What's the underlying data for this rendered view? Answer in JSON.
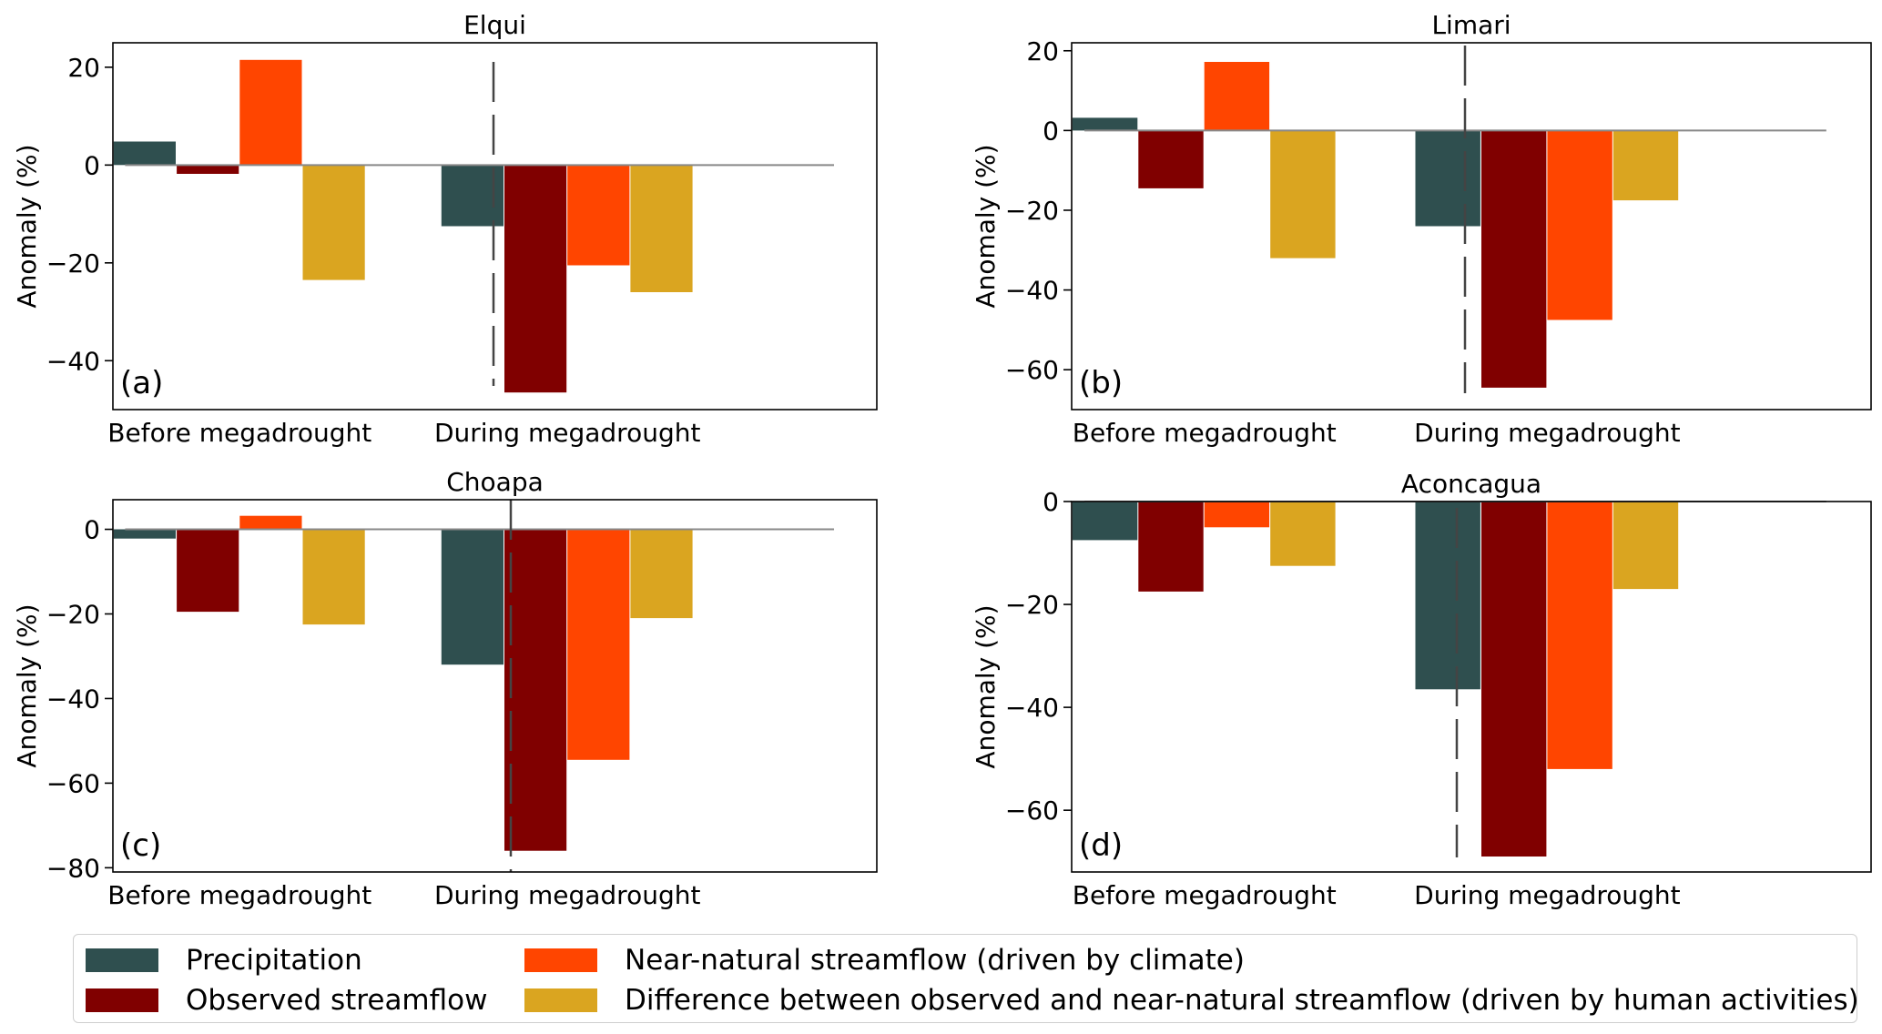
{
  "chart_data": [
    {
      "type": "bar",
      "title": "Elqui",
      "panel_label": "(a)",
      "ylabel": "Anomaly (%)",
      "categories": [
        "Before megadrought",
        "During megadrought"
      ],
      "ylim": [
        -50,
        25
      ],
      "yticks": [
        20,
        0,
        -20,
        -40
      ],
      "ytick_labels": [
        "20",
        "0",
        "−20",
        "−40"
      ],
      "series": [
        {
          "name": "Precipitation",
          "values": [
            4.8,
            -12.5
          ]
        },
        {
          "name": "Observed streamflow",
          "values": [
            -1.8,
            -46.5
          ]
        },
        {
          "name": "Near-natural streamflow (driven by climate)",
          "values": [
            21.5,
            -20.5
          ]
        },
        {
          "name": "Difference between observed and near-natural streamflow (driven by human activities)",
          "values": [
            -23.5,
            -26
          ]
        }
      ]
    },
    {
      "type": "bar",
      "title": "Limari",
      "panel_label": "(b)",
      "ylabel": "Anomaly (%)",
      "categories": [
        "Before megadrought",
        "During megadrought"
      ],
      "ylim": [
        -70,
        22
      ],
      "yticks": [
        20,
        0,
        -20,
        -40,
        -60
      ],
      "ytick_labels": [
        "20",
        "0",
        "−20",
        "−40",
        "−60"
      ],
      "series": [
        {
          "name": "Precipitation",
          "values": [
            3.2,
            -24
          ]
        },
        {
          "name": "Observed streamflow",
          "values": [
            -14.5,
            -64.5
          ]
        },
        {
          "name": "Near-natural streamflow (driven by climate)",
          "values": [
            17.2,
            -47.5
          ]
        },
        {
          "name": "Difference between observed and near-natural streamflow (driven by human activities)",
          "values": [
            -32,
            -17.5
          ]
        }
      ]
    },
    {
      "type": "bar",
      "title": "Choapa",
      "panel_label": "(c)",
      "ylabel": "Anomaly (%)",
      "categories": [
        "Before megadrought",
        "During megadrought"
      ],
      "ylim": [
        -81,
        7
      ],
      "yticks": [
        0,
        -20,
        -40,
        -60,
        -80
      ],
      "ytick_labels": [
        "0",
        "−20",
        "−40",
        "−60",
        "−80"
      ],
      "series": [
        {
          "name": "Precipitation",
          "values": [
            -2.2,
            -32
          ]
        },
        {
          "name": "Observed streamflow",
          "values": [
            -19.5,
            -76
          ]
        },
        {
          "name": "Near-natural streamflow (driven by climate)",
          "values": [
            3.2,
            -54.5
          ]
        },
        {
          "name": "Difference between observed and near-natural streamflow (driven by human activities)",
          "values": [
            -22.5,
            -21
          ]
        }
      ]
    },
    {
      "type": "bar",
      "title": "Aconcagua",
      "panel_label": "(d)",
      "ylabel": "Anomaly (%)",
      "categories": [
        "Before megadrought",
        "During megadrought"
      ],
      "ylim": [
        -72,
        0
      ],
      "yticks": [
        0,
        -20,
        -40,
        -60
      ],
      "ytick_labels": [
        "0",
        "−20",
        "−40",
        "−60"
      ],
      "series": [
        {
          "name": "Precipitation",
          "values": [
            -7.5,
            -36.5
          ]
        },
        {
          "name": "Observed streamflow",
          "values": [
            -17.5,
            -69
          ]
        },
        {
          "name": "Near-natural streamflow (driven by climate)",
          "values": [
            -5,
            -52
          ]
        },
        {
          "name": "Difference between observed and near-natural streamflow (driven by human activities)",
          "values": [
            -12.5,
            -17
          ]
        }
      ]
    }
  ],
  "legend": {
    "items": [
      {
        "label": "Precipitation",
        "color": "#2f4f4f"
      },
      {
        "label": "Observed streamflow",
        "color": "#800000"
      },
      {
        "label": "Near-natural streamflow (driven by climate)",
        "color": "#ff4500"
      },
      {
        "label": "Difference between observed and near-natural streamflow (driven by human activities)",
        "color": "#daa520"
      }
    ]
  },
  "colors": [
    "#2f4f4f",
    "#800000",
    "#ff4500",
    "#daa520"
  ]
}
